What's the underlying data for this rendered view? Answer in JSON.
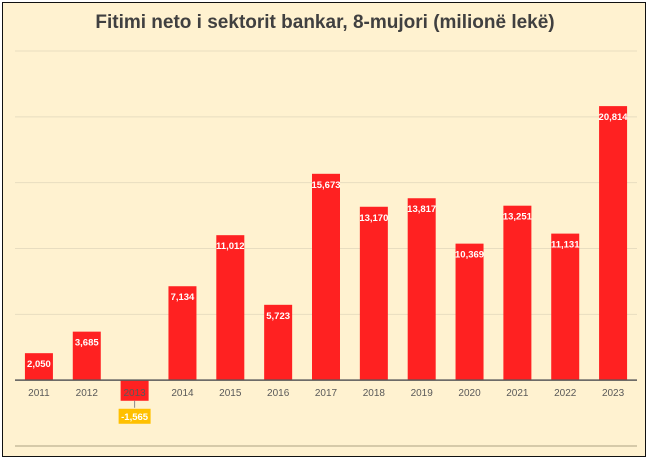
{
  "chart_data": {
    "type": "bar",
    "title": "Fitimi neto i sektorit bankar, 8-mujori (milionë lekë)",
    "xlabel": "",
    "ylabel": "",
    "categories": [
      "2011",
      "2012",
      "2013",
      "2014",
      "2015",
      "2016",
      "2017",
      "2018",
      "2019",
      "2020",
      "2021",
      "2022",
      "2023"
    ],
    "values": [
      2050,
      3685,
      -1565,
      7134,
      11012,
      5723,
      15673,
      13170,
      13817,
      10369,
      13251,
      11131,
      20814
    ],
    "data_labels": [
      "2,050",
      "3,685",
      "-1,565",
      "7,134",
      "11,012",
      "5,723",
      "15,673",
      "13,170",
      "13,817",
      "10,369",
      "13,251",
      "11,131",
      "20,814"
    ],
    "ylim": [
      -5000,
      25000
    ],
    "grid": true,
    "legend": "none",
    "colors": {
      "bar": "#FF2121",
      "negative_label_bg": "#FFC000",
      "background": "#FFF2D0",
      "grid": "#E8DDC0",
      "axis": "#595959"
    }
  }
}
